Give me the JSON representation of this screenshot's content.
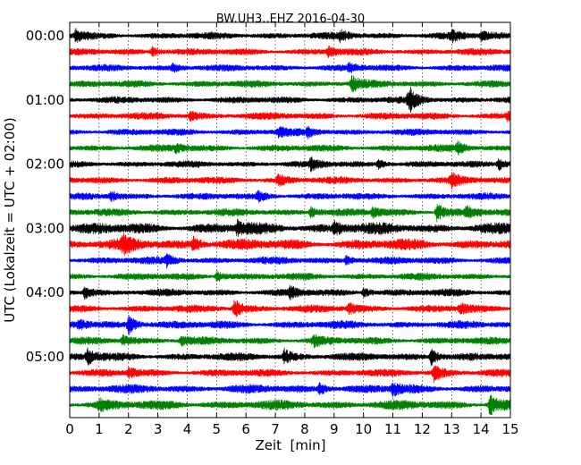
{
  "chart_data": {
    "type": "line",
    "title": "BW.UH3..EHZ 2016-04-30",
    "xlabel": "Zeit  [min]",
    "ylabel": "UTC (Lokalzeit = UTC + 02:00)",
    "xlim": [
      0,
      15
    ],
    "x_ticks": [
      "0",
      "1",
      "2",
      "3",
      "4",
      "5",
      "6",
      "7",
      "8",
      "9",
      "10",
      "11",
      "12",
      "13",
      "14",
      "15"
    ],
    "y_ticks": [
      "00:00",
      "01:00",
      "02:00",
      "03:00",
      "04:00",
      "05:00"
    ],
    "grid": "x-only-dotted",
    "trace_colors": [
      "#000000",
      "#ff0000",
      "#0000ff",
      "#008000"
    ],
    "series": [
      {
        "row": 0,
        "color": "#000000",
        "amplitude": 0.3,
        "events": [
          {
            "t": 0.2,
            "a": 0.55
          },
          {
            "t": 9.2,
            "a": 0.45
          },
          {
            "t": 13.0,
            "a": 0.45
          },
          {
            "t": 14.0,
            "a": 0.4
          }
        ]
      },
      {
        "row": 1,
        "color": "#ff0000",
        "amplitude": 0.28,
        "events": [
          {
            "t": 2.8,
            "a": 0.45
          },
          {
            "t": 8.8,
            "a": 0.45
          }
        ]
      },
      {
        "row": 2,
        "color": "#0000ff",
        "amplitude": 0.28,
        "events": [
          {
            "t": 3.5,
            "a": 0.35
          },
          {
            "t": 9.5,
            "a": 0.35
          }
        ]
      },
      {
        "row": 3,
        "color": "#008000",
        "amplitude": 0.3,
        "events": [
          {
            "t": 9.6,
            "a": 0.75
          }
        ]
      },
      {
        "row": 4,
        "color": "#000000",
        "amplitude": 0.28,
        "events": [
          {
            "t": 11.6,
            "a": 0.7
          },
          {
            "t": 11.5,
            "a": 0.5
          }
        ]
      },
      {
        "row": 5,
        "color": "#ff0000",
        "amplitude": 0.3,
        "events": [
          {
            "t": 4.1,
            "a": 0.4
          },
          {
            "t": 14.9,
            "a": 0.4
          }
        ]
      },
      {
        "row": 6,
        "color": "#0000ff",
        "amplitude": 0.28,
        "events": [
          {
            "t": 7.1,
            "a": 0.45
          },
          {
            "t": 8.1,
            "a": 0.45
          }
        ]
      },
      {
        "row": 7,
        "color": "#008000",
        "amplitude": 0.3,
        "events": [
          {
            "t": 3.6,
            "a": 0.35
          },
          {
            "t": 13.2,
            "a": 0.5
          }
        ]
      },
      {
        "row": 8,
        "color": "#000000",
        "amplitude": 0.28,
        "events": [
          {
            "t": 8.2,
            "a": 0.5
          },
          {
            "t": 10.5,
            "a": 0.4
          },
          {
            "t": 14.6,
            "a": 0.55
          }
        ]
      },
      {
        "row": 9,
        "color": "#ff0000",
        "amplitude": 0.3,
        "events": [
          {
            "t": 7.1,
            "a": 0.55
          },
          {
            "t": 13.0,
            "a": 0.55
          }
        ]
      },
      {
        "row": 10,
        "color": "#0000ff",
        "amplitude": 0.28,
        "events": [
          {
            "t": 1.4,
            "a": 0.45
          },
          {
            "t": 6.4,
            "a": 0.45
          }
        ]
      },
      {
        "row": 11,
        "color": "#008000",
        "amplitude": 0.32,
        "events": [
          {
            "t": 8.2,
            "a": 0.5
          },
          {
            "t": 10.3,
            "a": 0.45
          },
          {
            "t": 12.5,
            "a": 0.9
          },
          {
            "t": 13.5,
            "a": 0.5
          }
        ]
      },
      {
        "row": 12,
        "color": "#000000",
        "amplitude": 0.55,
        "events": [
          {
            "t": 5.7,
            "a": 0.6
          },
          {
            "t": 9.0,
            "a": 0.7
          }
        ]
      },
      {
        "row": 13,
        "color": "#ff0000",
        "amplitude": 0.55,
        "events": [
          {
            "t": 1.8,
            "a": 0.7
          },
          {
            "t": 4.2,
            "a": 0.75
          }
        ]
      },
      {
        "row": 14,
        "color": "#0000ff",
        "amplitude": 0.32,
        "events": [
          {
            "t": 3.3,
            "a": 0.5
          },
          {
            "t": 9.4,
            "a": 0.45
          }
        ]
      },
      {
        "row": 15,
        "color": "#008000",
        "amplitude": 0.3,
        "events": [
          {
            "t": 5.0,
            "a": 0.55
          }
        ]
      },
      {
        "row": 16,
        "color": "#000000",
        "amplitude": 0.32,
        "events": [
          {
            "t": 0.5,
            "a": 0.55
          },
          {
            "t": 7.5,
            "a": 0.5
          },
          {
            "t": 10.0,
            "a": 0.45
          }
        ]
      },
      {
        "row": 17,
        "color": "#ff0000",
        "amplitude": 0.32,
        "events": [
          {
            "t": 5.6,
            "a": 0.9
          },
          {
            "t": 9.5,
            "a": 0.5
          },
          {
            "t": 13.3,
            "a": 0.45
          }
        ]
      },
      {
        "row": 18,
        "color": "#0000ff",
        "amplitude": 0.35,
        "events": [
          {
            "t": 2.0,
            "a": 1.0
          },
          {
            "t": 0.3,
            "a": 0.45
          }
        ]
      },
      {
        "row": 19,
        "color": "#008000",
        "amplitude": 0.32,
        "events": [
          {
            "t": 1.8,
            "a": 0.55
          },
          {
            "t": 3.8,
            "a": 0.5
          },
          {
            "t": 8.3,
            "a": 0.45
          }
        ]
      },
      {
        "row": 20,
        "color": "#000000",
        "amplitude": 0.35,
        "events": [
          {
            "t": 0.6,
            "a": 0.7
          },
          {
            "t": 7.3,
            "a": 0.7
          },
          {
            "t": 12.3,
            "a": 0.8
          }
        ]
      },
      {
        "row": 21,
        "color": "#ff0000",
        "amplitude": 0.32,
        "events": [
          {
            "t": 12.4,
            "a": 0.85
          },
          {
            "t": 2.0,
            "a": 0.45
          }
        ]
      },
      {
        "row": 22,
        "color": "#0000ff",
        "amplitude": 0.4,
        "events": [
          {
            "t": 8.5,
            "a": 0.6
          },
          {
            "t": 11.0,
            "a": 0.6
          }
        ]
      },
      {
        "row": 23,
        "color": "#008000",
        "amplitude": 0.45,
        "events": [
          {
            "t": 14.3,
            "a": 1.0
          },
          {
            "t": 1.0,
            "a": 0.55
          }
        ]
      }
    ]
  }
}
